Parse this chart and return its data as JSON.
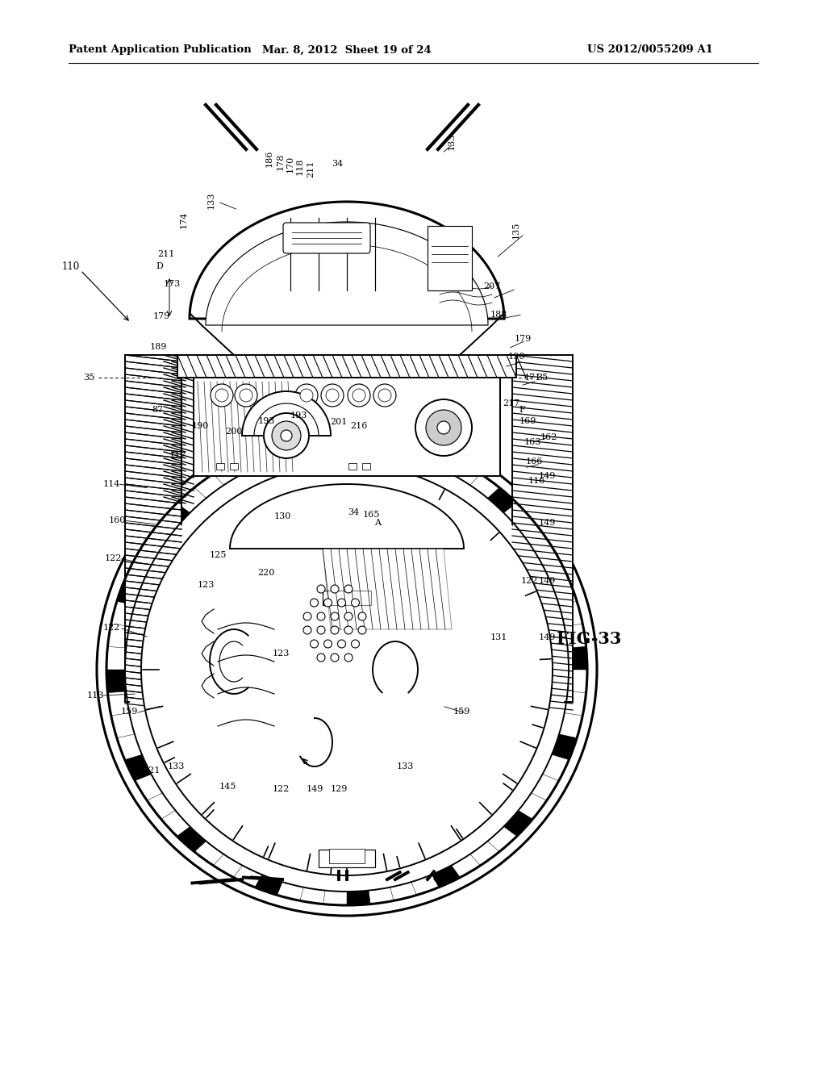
{
  "bg_color": "#ffffff",
  "title_left": "Patent Application Publication",
  "title_center": "Mar. 8, 2012  Sheet 19 of 24",
  "title_right": "US 2012/0055209 A1",
  "fig_label": "FIG-33"
}
